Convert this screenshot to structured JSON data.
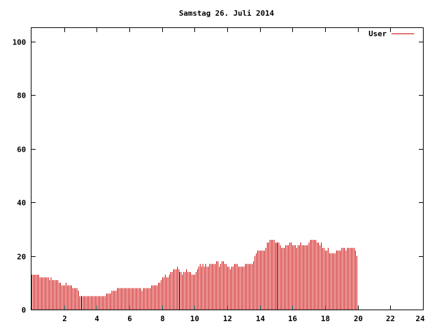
{
  "chart_data": {
    "type": "bar",
    "title": "Samstag 26. Juli 2014",
    "xlabel": "",
    "ylabel": "",
    "xlim": [
      0,
      24
    ],
    "ylim": [
      0,
      105
    ],
    "x_ticks": [
      2,
      4,
      6,
      8,
      10,
      12,
      14,
      16,
      18,
      20,
      22,
      24
    ],
    "x_tick_labels": [
      "2",
      "4",
      "6",
      "8",
      "10",
      "12",
      "14",
      "16",
      "18",
      "20",
      "22",
      "24"
    ],
    "y_ticks": [
      0,
      20,
      40,
      60,
      80,
      100
    ],
    "y_tick_labels": [
      "0",
      "20",
      "40",
      "60",
      "80",
      "100"
    ],
    "grid": false,
    "legend_position": "top-right",
    "colors": {
      "series": "#cc0000",
      "axis": "#000000",
      "background": "#ffffff"
    },
    "series": [
      {
        "name": "User",
        "sample_interval_minutes": 5,
        "values": [
          13,
          13,
          13,
          13,
          13,
          13,
          12,
          12,
          12,
          12,
          12,
          12,
          12,
          11,
          12,
          11,
          11,
          11,
          11,
          11,
          10,
          10,
          9,
          9,
          9,
          10,
          9,
          9,
          9,
          9,
          8,
          8,
          8,
          8,
          7,
          5,
          5,
          5,
          5,
          5,
          5,
          5,
          5,
          5,
          5,
          5,
          5,
          5,
          5,
          5,
          5,
          5,
          5,
          5,
          5,
          6,
          6,
          6,
          6,
          7,
          7,
          7,
          7,
          8,
          8,
          8,
          8,
          8,
          8,
          8,
          8,
          8,
          8,
          8,
          8,
          8,
          8,
          8,
          8,
          8,
          8,
          7,
          8,
          8,
          8,
          8,
          8,
          8,
          9,
          9,
          9,
          9,
          9,
          10,
          10,
          11,
          12,
          12,
          13,
          12,
          12,
          13,
          14,
          14,
          15,
          15,
          15,
          16,
          15,
          14,
          14,
          13,
          14,
          14,
          15,
          14,
          14,
          14,
          13,
          13,
          13,
          14,
          15,
          16,
          17,
          16,
          17,
          16,
          17,
          16,
          16,
          17,
          17,
          17,
          17,
          17,
          18,
          18,
          16,
          17,
          18,
          18,
          17,
          17,
          16,
          16,
          15,
          16,
          16,
          17,
          17,
          17,
          16,
          16,
          16,
          16,
          16,
          17,
          17,
          17,
          17,
          17,
          17,
          18,
          20,
          21,
          22,
          22,
          22,
          22,
          22,
          22,
          23,
          25,
          25,
          26,
          26,
          26,
          26,
          25,
          25,
          25,
          25,
          24,
          23,
          23,
          23,
          24,
          24,
          24,
          25,
          25,
          24,
          24,
          24,
          23,
          24,
          24,
          25,
          24,
          24,
          24,
          24,
          24,
          25,
          26,
          26,
          26,
          26,
          26,
          25,
          25,
          24,
          25,
          23,
          23,
          22,
          22,
          23,
          21,
          21,
          21,
          21,
          21,
          22,
          22,
          22,
          22,
          23,
          23,
          23,
          22,
          23,
          23,
          23,
          23,
          23,
          23,
          22,
          20
        ]
      }
    ]
  }
}
